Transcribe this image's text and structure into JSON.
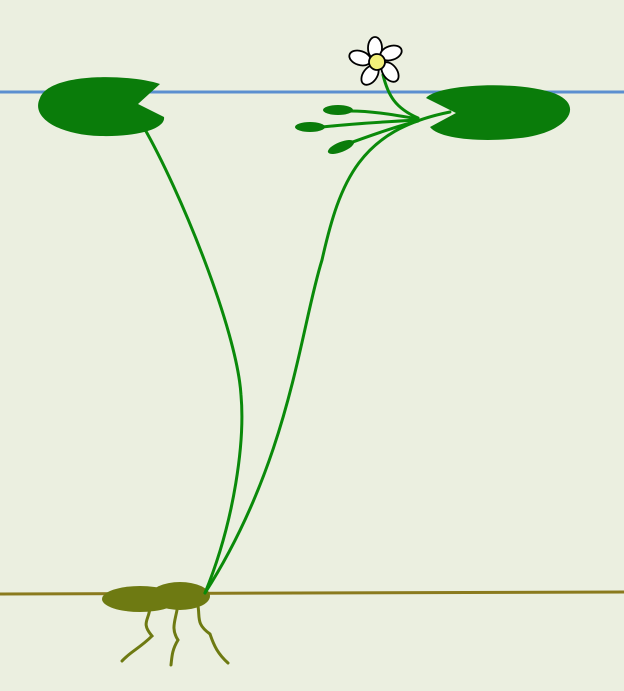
{
  "diagram": {
    "title": "",
    "labels": [],
    "colors": {
      "background": "#ebefe0",
      "water_surface": "#5b8fd0",
      "pond_bottom": "#8a7a1e",
      "leaf": "#0a7c0a",
      "stem": "#0a8a0a",
      "rhizome": "#6e7a12",
      "root": "#6e7a12",
      "petal_fill": "#ffffff",
      "petal_stroke": "#000000",
      "flower_center": "#f2f07a"
    },
    "parts": [
      "water-surface",
      "pond-bottom",
      "floating-leaf-left",
      "floating-leaf-right",
      "leaf-stalk-left",
      "leaf-stalk-right",
      "flower",
      "flower-stalk",
      "flower-buds",
      "rhizome",
      "roots"
    ]
  }
}
